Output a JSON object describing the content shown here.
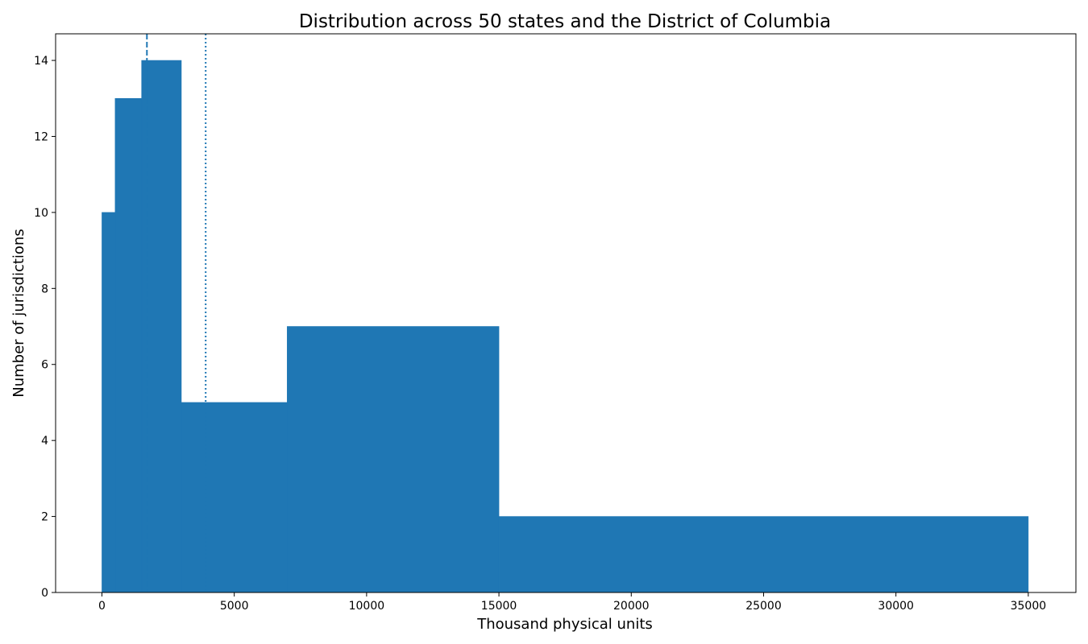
{
  "chart_data": {
    "type": "bar",
    "title": "Distribution across 50 states and the District of Columbia",
    "xlabel": "Thousand physical units",
    "ylabel": "Number of jurisdictions",
    "xlim": [
      -1750,
      36800
    ],
    "ylim": [
      0,
      14.7
    ],
    "bins": [
      {
        "x0": 0,
        "x1": 500,
        "count": 10
      },
      {
        "x0": 500,
        "x1": 1500,
        "count": 13
      },
      {
        "x0": 1500,
        "x1": 3000,
        "count": 14
      },
      {
        "x0": 3000,
        "x1": 7000,
        "count": 5
      },
      {
        "x0": 7000,
        "x1": 15000,
        "count": 7
      },
      {
        "x0": 15000,
        "x1": 35000,
        "count": 2
      }
    ],
    "xticks": [
      0,
      5000,
      10000,
      15000,
      20000,
      25000,
      30000,
      35000
    ],
    "yticks": [
      0,
      2,
      4,
      6,
      8,
      10,
      12,
      14
    ],
    "reference_lines": [
      {
        "x": 1700,
        "style": "dashed"
      },
      {
        "x": 3920,
        "style": "dotted"
      }
    ],
    "bar_color": "#1f77b4",
    "line_color": "#1f77b4",
    "grid": false,
    "legend": "none"
  }
}
